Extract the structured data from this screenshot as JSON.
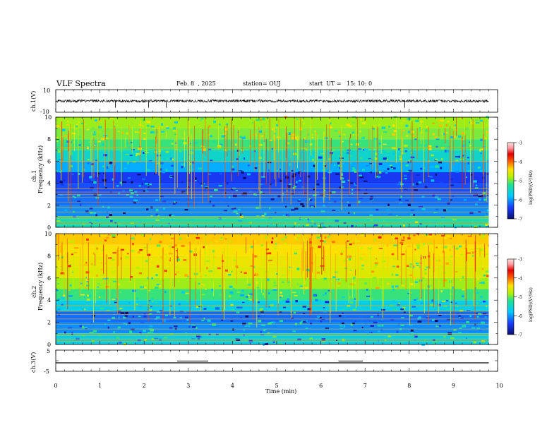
{
  "header": {
    "title": "VLF Spectra",
    "date": "Feb. 8  , 2025",
    "station": "station= OUJ",
    "start_time": "start  UT =   15: 10: 0"
  },
  "colorbar": {
    "label": "log(PSD)(V²/Hz)",
    "ticks": [
      "-3",
      "-4",
      "-5",
      "-6",
      "-7"
    ],
    "range": [
      -7,
      -3
    ],
    "colors": [
      "#0a0f6e",
      "#1a3cff",
      "#00c8ff",
      "#22e090",
      "#b6f000",
      "#ffe000",
      "#ff6000",
      "#e00000",
      "#ff9aa0",
      "#ffe0e0"
    ]
  },
  "chart_data": [
    {
      "type": "line",
      "panel": "ch1-waveform",
      "ylabel": "ch.1(V)",
      "ylim": [
        -10,
        10
      ],
      "yticks": [
        "10",
        "-10"
      ],
      "xlim": [
        0,
        10
      ],
      "description_values": {
        "baseline_v": 0.0,
        "noise_amplitude_v": 1.2,
        "spikes_min": [
          1.35,
          2.1,
          2.5,
          7.9
        ]
      }
    },
    {
      "type": "heatmap",
      "panel": "ch1-spectrogram",
      "ylabel": "ch.1\nFrequency (kHz)",
      "ylabel_lines": [
        "ch.1",
        "Frequency (kHz)"
      ],
      "ylim": [
        0,
        10
      ],
      "yticks": [
        "0",
        "2",
        "4",
        "6",
        "8",
        "10"
      ],
      "xlim": [
        0,
        9.8
      ],
      "colorbar_range": [
        -7,
        -3
      ],
      "rows_log_psd": [
        {
          "f_khz": 0.5,
          "level": -5.8
        },
        {
          "f_khz": 1.5,
          "level": -6.3
        },
        {
          "f_khz": 2.5,
          "level": -6.4
        },
        {
          "f_khz": 3.5,
          "level": -6.5
        },
        {
          "f_khz": 4.5,
          "level": -6.6
        },
        {
          "f_khz": 5.5,
          "level": -6.2
        },
        {
          "f_khz": 6.5,
          "level": -5.9
        },
        {
          "f_khz": 7.5,
          "level": -5.6
        },
        {
          "f_khz": 8.5,
          "level": -5.4
        },
        {
          "f_khz": 9.5,
          "level": -5.3
        }
      ],
      "tone_lines_khz": [
        0.3,
        0.5,
        0.8,
        1.0,
        1.4,
        1.8,
        2.3,
        2.7,
        3.0,
        3.2,
        3.5,
        6.0,
        7.2
      ]
    },
    {
      "type": "heatmap",
      "panel": "ch2-spectrogram",
      "ylabel": "ch.2\nFrequency (kHz)",
      "ylabel_lines": [
        "ch.2",
        "Frequency (kHz)"
      ],
      "ylim": [
        0,
        10
      ],
      "yticks": [
        "0",
        "2",
        "4",
        "6",
        "8",
        "10"
      ],
      "xlim": [
        0,
        9.8
      ],
      "colorbar_range": [
        -7,
        -3
      ],
      "rows_log_psd": [
        {
          "f_khz": 0.5,
          "level": -6.0
        },
        {
          "f_khz": 1.5,
          "level": -6.3
        },
        {
          "f_khz": 2.5,
          "level": -6.4
        },
        {
          "f_khz": 3.5,
          "level": -6.0
        },
        {
          "f_khz": 4.5,
          "level": -5.6
        },
        {
          "f_khz": 5.5,
          "level": -5.3
        },
        {
          "f_khz": 6.5,
          "level": -5.0
        },
        {
          "f_khz": 7.5,
          "level": -4.9
        },
        {
          "f_khz": 8.5,
          "level": -4.8
        },
        {
          "f_khz": 9.5,
          "level": -4.7
        }
      ],
      "tone_lines_khz": [
        0.3,
        0.5,
        0.8,
        1.0,
        1.4,
        1.8,
        2.3,
        2.7,
        3.0,
        3.5
      ]
    },
    {
      "type": "line",
      "panel": "ch3-waveform",
      "ylabel": "ch.3(V)",
      "ylim": [
        -5,
        5
      ],
      "yticks": [
        "5",
        "-5"
      ],
      "xlim": [
        0,
        10
      ],
      "description_values": {
        "baseline_v": -1.0,
        "pulses": [
          {
            "start_min": 2.75,
            "end_min": 3.45,
            "level_v": 0.0
          },
          {
            "start_min": 6.4,
            "end_min": 6.95,
            "level_v": 0.0
          }
        ]
      }
    }
  ],
  "xaxis": {
    "label": "Time (min)",
    "ticks": [
      "0",
      "1",
      "2",
      "3",
      "4",
      "5",
      "6",
      "7",
      "8",
      "9",
      "10"
    ],
    "range": [
      0,
      10
    ]
  }
}
